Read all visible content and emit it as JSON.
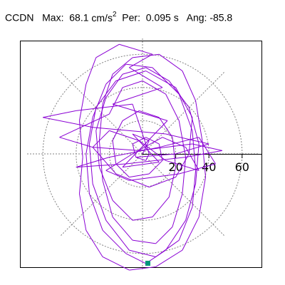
{
  "header": {
    "station": "CCDN",
    "max_label": "Max:",
    "max_value": "68.1",
    "max_unit": "cm/s",
    "max_unit_exp": "2",
    "per_label": "Per:",
    "per_value": "0.095 s",
    "ang_label": "Ang:",
    "ang_value": "-85.8"
  },
  "chart_data": {
    "type": "scatter",
    "title": "CCDN  Max: 68.1 cm/s2  Per: 0.095 s  Ang: -85.8",
    "polar": true,
    "radial_ticks": [
      "20",
      "40",
      "60"
    ],
    "radial_tick_values": [
      20,
      40,
      60
    ],
    "grid": true,
    "grid_style": "dotted",
    "angle": -85.8,
    "max": 68.1,
    "series": [
      {
        "points": [
          [
            0,
            0
          ],
          [
            4,
            8
          ],
          [
            -6,
            12
          ],
          [
            10,
            -5
          ],
          [
            -12,
            -8
          ],
          [
            15,
            20
          ],
          [
            -18,
            30
          ],
          [
            12,
            40
          ],
          [
            -8,
            52
          ],
          [
            6,
            60
          ],
          [
            -14,
            66
          ],
          [
            -28,
            58
          ],
          [
            -34,
            42
          ],
          [
            -38,
            20
          ],
          [
            -36,
            -2
          ],
          [
            -38,
            -24
          ],
          [
            -34,
            -46
          ],
          [
            -24,
            -62
          ],
          [
            -8,
            -70
          ],
          [
            8,
            -68
          ],
          [
            24,
            -58
          ],
          [
            34,
            -38
          ],
          [
            38,
            -14
          ],
          [
            36,
            8
          ],
          [
            32,
            32
          ],
          [
            24,
            50
          ],
          [
            10,
            60
          ],
          [
            -6,
            58
          ],
          [
            -18,
            48
          ],
          [
            -24,
            30
          ],
          [
            -26,
            8
          ],
          [
            -24,
            -16
          ],
          [
            -18,
            -38
          ],
          [
            -6,
            -52
          ],
          [
            8,
            -54
          ],
          [
            18,
            -44
          ],
          [
            24,
            -24
          ],
          [
            26,
            -2
          ],
          [
            22,
            20
          ],
          [
            14,
            36
          ],
          [
            0,
            44
          ],
          [
            -12,
            40
          ],
          [
            -20,
            24
          ],
          [
            -50,
            10
          ],
          [
            -30,
            4
          ],
          [
            -2,
            2
          ],
          [
            30,
            6
          ],
          [
            48,
            2
          ],
          [
            26,
            -2
          ],
          [
            -10,
            -6
          ],
          [
            -40,
            -8
          ],
          [
            -20,
            -2
          ],
          [
            10,
            4
          ],
          [
            34,
            10
          ],
          [
            44,
            -6
          ],
          [
            22,
            -12
          ],
          [
            -8,
            -16
          ],
          [
            -22,
            -10
          ],
          [
            -6,
            0
          ],
          [
            12,
            10
          ],
          [
            26,
            4
          ],
          [
            34,
            -10
          ],
          [
            14,
            -4
          ],
          [
            -2,
            8
          ],
          [
            -20,
            14
          ],
          [
            -30,
            4
          ],
          [
            -16,
            -12
          ],
          [
            4,
            -20
          ],
          [
            20,
            -14
          ],
          [
            28,
            0
          ],
          [
            30,
            22
          ],
          [
            20,
            40
          ],
          [
            2,
            50
          ],
          [
            -16,
            44
          ],
          [
            -28,
            28
          ],
          [
            -32,
            6
          ],
          [
            -30,
            -18
          ],
          [
            -22,
            -40
          ],
          [
            -8,
            -58
          ],
          [
            8,
            -62
          ],
          [
            22,
            -52
          ],
          [
            30,
            -32
          ],
          [
            32,
            -10
          ],
          [
            30,
            14
          ],
          [
            22,
            36
          ],
          [
            6,
            52
          ],
          [
            -10,
            54
          ],
          [
            -22,
            42
          ],
          [
            -30,
            22
          ],
          [
            -34,
            0
          ],
          [
            -32,
            -24
          ],
          [
            -24,
            -46
          ],
          [
            -10,
            -60
          ],
          [
            2,
            -66
          ],
          [
            14,
            -58
          ],
          [
            26,
            -40
          ],
          [
            32,
            -18
          ],
          [
            34,
            6
          ],
          [
            28,
            28
          ],
          [
            16,
            44
          ],
          [
            2,
            52
          ],
          [
            -12,
            48
          ],
          [
            -22,
            34
          ],
          [
            -28,
            14
          ],
          [
            -26,
            -8
          ],
          [
            -18,
            -28
          ],
          [
            -6,
            -40
          ],
          [
            6,
            -38
          ],
          [
            16,
            -26
          ],
          [
            20,
            -8
          ],
          [
            18,
            10
          ],
          [
            10,
            22
          ],
          [
            -2,
            26
          ],
          [
            -12,
            20
          ],
          [
            -18,
            8
          ],
          [
            -16,
            -6
          ],
          [
            -8,
            -14
          ],
          [
            4,
            -12
          ],
          [
            12,
            -4
          ],
          [
            10,
            6
          ],
          [
            2,
            10
          ],
          [
            -6,
            6
          ],
          [
            -4,
            -2
          ],
          [
            2,
            -4
          ],
          [
            4,
            0
          ],
          [
            -6,
            30
          ],
          [
            -40,
            26
          ],
          [
            -60,
            22
          ],
          [
            -30,
            16
          ],
          [
            14,
            12
          ],
          [
            40,
            6
          ],
          [
            20,
            0
          ],
          [
            -4,
            -2
          ]
        ]
      }
    ]
  }
}
